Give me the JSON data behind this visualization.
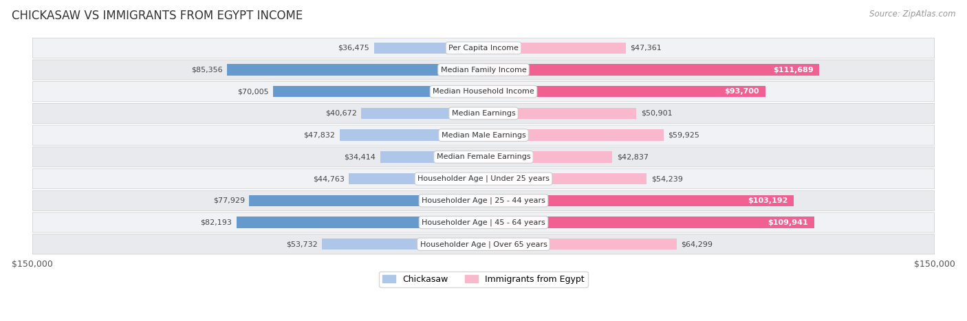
{
  "title": "CHICKASAW VS IMMIGRANTS FROM EGYPT INCOME",
  "source": "Source: ZipAtlas.com",
  "categories": [
    "Per Capita Income",
    "Median Family Income",
    "Median Household Income",
    "Median Earnings",
    "Median Male Earnings",
    "Median Female Earnings",
    "Householder Age | Under 25 years",
    "Householder Age | 25 - 44 years",
    "Householder Age | 45 - 64 years",
    "Householder Age | Over 65 years"
  ],
  "chickasaw": [
    36475,
    85356,
    70005,
    40672,
    47832,
    34414,
    44763,
    77929,
    82193,
    53732
  ],
  "egypt": [
    47361,
    111689,
    93700,
    50901,
    59925,
    42837,
    54239,
    103192,
    109941,
    64299
  ],
  "max_val": 150000,
  "chickasaw_color_light": "#aec6e8",
  "chickasaw_color_dark": "#6699cc",
  "egypt_color_light": "#f9b8cc",
  "egypt_color_dark": "#f06090",
  "chickasaw_label": "Chickasaw",
  "egypt_label": "Immigrants from Egypt",
  "row_bg_odd": "#f0f2f5",
  "row_bg_even": "#e8eaee",
  "label_color_dark": "#444444",
  "label_color_white": "#ffffff",
  "bar_height": 0.52,
  "title_fontsize": 12,
  "source_fontsize": 8.5,
  "tick_fontsize": 9,
  "category_fontsize": 8,
  "value_fontsize": 8,
  "egypt_large_threshold": 70000,
  "chickasaw_large_threshold": 60000
}
